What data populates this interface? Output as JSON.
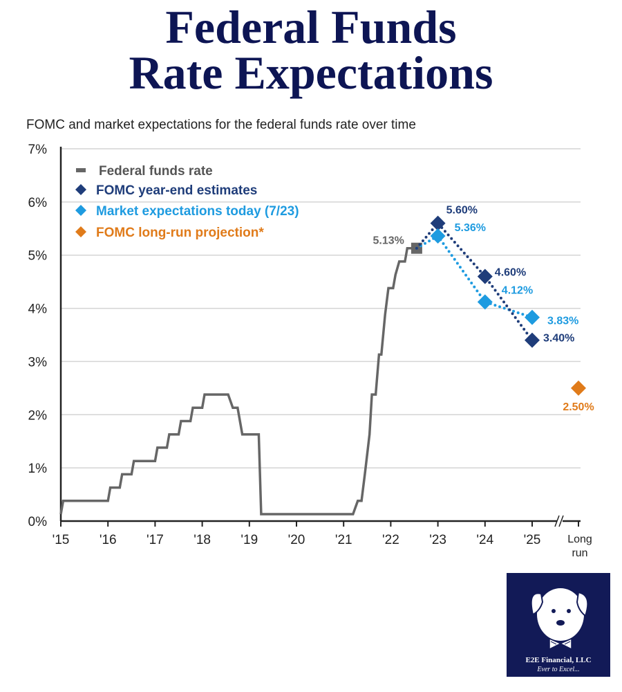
{
  "page_title": "Federal Funds Rate Expectations",
  "title_line1": "Federal Funds",
  "title_line2": "Rate Expectations",
  "chart_data": {
    "type": "line",
    "title": "FOMC and market expectations for the federal funds rate over time",
    "yticks": [
      "0%",
      "1%",
      "2%",
      "3%",
      "4%",
      "5%",
      "6%",
      "7%"
    ],
    "ylim": [
      0,
      7
    ],
    "xticks": [
      "'15",
      "'16",
      "'17",
      "'18",
      "'19",
      "'20",
      "'21",
      "'22",
      "'23",
      "'24",
      "'25",
      "Long run"
    ],
    "grid": true,
    "legend_position": "top-left",
    "series": [
      {
        "name": "Federal funds rate",
        "color": "#666666",
        "points": [
          [
            2015.0,
            0.13
          ],
          [
            2015.05,
            0.38
          ],
          [
            2016.0,
            0.38
          ],
          [
            2016.05,
            0.63
          ],
          [
            2016.25,
            0.63
          ],
          [
            2016.3,
            0.88
          ],
          [
            2016.5,
            0.88
          ],
          [
            2016.55,
            1.13
          ],
          [
            2017.0,
            1.13
          ],
          [
            2017.05,
            1.38
          ],
          [
            2017.25,
            1.38
          ],
          [
            2017.3,
            1.63
          ],
          [
            2017.5,
            1.63
          ],
          [
            2017.55,
            1.88
          ],
          [
            2017.75,
            1.88
          ],
          [
            2017.8,
            2.13
          ],
          [
            2018.0,
            2.13
          ],
          [
            2018.05,
            2.38
          ],
          [
            2018.55,
            2.38
          ],
          [
            2018.65,
            2.13
          ],
          [
            2018.75,
            2.13
          ],
          [
            2018.85,
            1.63
          ],
          [
            2019.2,
            1.63
          ],
          [
            2019.25,
            0.13
          ],
          [
            2021.2,
            0.13
          ],
          [
            2021.3,
            0.38
          ],
          [
            2021.38,
            0.38
          ],
          [
            2021.45,
            0.88
          ],
          [
            2021.55,
            1.63
          ],
          [
            2021.6,
            2.38
          ],
          [
            2021.68,
            2.38
          ],
          [
            2021.75,
            3.13
          ],
          [
            2021.8,
            3.13
          ],
          [
            2021.88,
            3.88
          ],
          [
            2021.95,
            4.38
          ],
          [
            2022.05,
            4.38
          ],
          [
            2022.1,
            4.63
          ],
          [
            2022.18,
            4.88
          ],
          [
            2022.3,
            4.88
          ],
          [
            2022.35,
            5.13
          ],
          [
            2022.55,
            5.13
          ]
        ],
        "end_label": "5.13%"
      },
      {
        "name": "FOMC year-end estimates",
        "color": "#1f3d7a",
        "points": [
          [
            2023,
            5.6
          ],
          [
            2024,
            4.6
          ],
          [
            2025,
            3.4
          ]
        ],
        "labels": [
          "5.60%",
          "4.60%",
          "3.40%"
        ]
      },
      {
        "name": "Market expectations today (7/23)",
        "color": "#1e9be0",
        "points": [
          [
            2023,
            5.36
          ],
          [
            2024,
            4.12
          ],
          [
            2025,
            3.83
          ]
        ],
        "labels": [
          "5.36%",
          "4.12%",
          "3.83%"
        ]
      },
      {
        "name": "FOMC long-run projection*",
        "color": "#e07b1a",
        "points": [
          [
            "Long run",
            2.5
          ]
        ],
        "labels": [
          "2.50%"
        ]
      }
    ]
  },
  "logo": {
    "name": "E2E Financial, LLC",
    "tagline": "Ever to Excel..."
  }
}
